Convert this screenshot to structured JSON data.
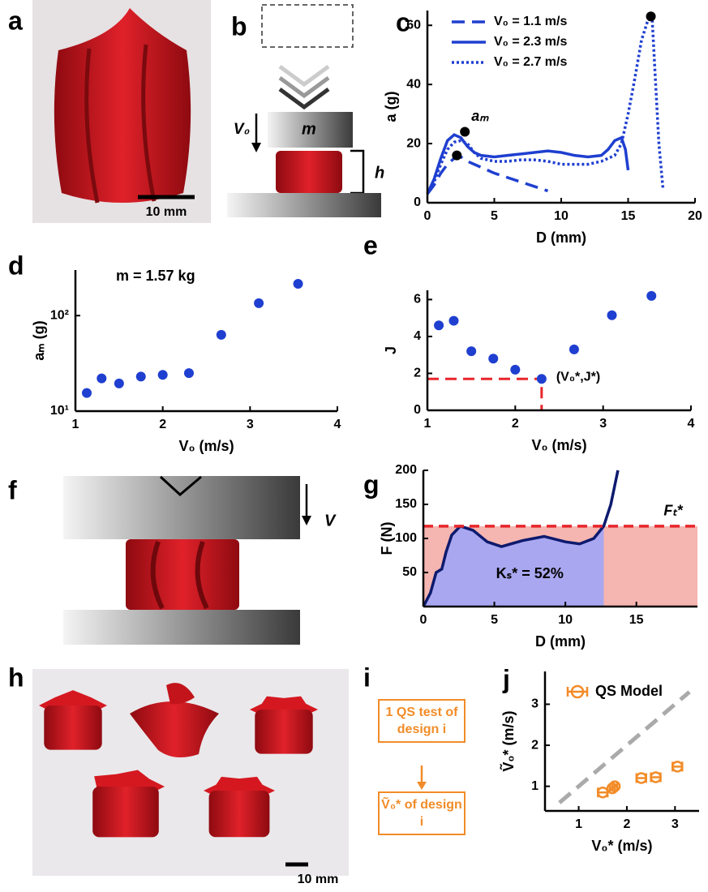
{
  "panel_labels": [
    "a",
    "b",
    "c",
    "d",
    "e",
    "f",
    "g",
    "h",
    "i",
    "j"
  ],
  "panel_a": {
    "scale_bar": "10 mm"
  },
  "panel_b": {
    "mass": "m",
    "velocity": "V₀",
    "height": "h"
  },
  "panel_f": {
    "velocity": "V"
  },
  "panel_h": {
    "scale_bar": "10 mm"
  },
  "panel_i": {
    "step1": "1 QS test of design i",
    "step2": "Ṽ₀* of design i"
  },
  "chart_data": [
    {
      "type": "line",
      "xlabel": "D (mm)",
      "ylabel": "a (g)",
      "xlim": [
        0,
        20
      ],
      "xticks": [
        0,
        5,
        10,
        15,
        20
      ],
      "ylim": [
        0,
        65
      ],
      "yticks": [
        0,
        20,
        40,
        60
      ],
      "legend": "upper left",
      "series": [
        {
          "name": "V₀ = 1.1 m/s",
          "color": "#1f3fd0",
          "dash": "dashed",
          "x": [
            0,
            0.5,
            1,
            1.5,
            2,
            2.5,
            3,
            4,
            5,
            6,
            7,
            8,
            9
          ],
          "values": [
            3,
            6,
            10,
            13,
            15,
            15.5,
            14,
            12,
            10,
            8.5,
            7,
            5.5,
            4
          ]
        },
        {
          "name": "V₀ = 2.3 m/s",
          "color": "#1f3fd0",
          "dash": "solid",
          "x": [
            0,
            0.5,
            1,
            1.5,
            2,
            2.5,
            3,
            3.5,
            4,
            5,
            6,
            7,
            8,
            9,
            10,
            11,
            12,
            13,
            13.5,
            14,
            14.5,
            14.8,
            15
          ],
          "values": [
            3,
            8,
            15,
            21,
            23,
            22,
            19,
            17,
            16,
            15.5,
            16,
            16.5,
            17,
            17.5,
            17,
            16,
            15.5,
            16,
            18,
            21,
            22,
            18,
            11
          ]
        },
        {
          "name": "V₀ = 2.7 m/s",
          "color": "#1f3fd0",
          "dash": "dotted",
          "x": [
            0,
            0.5,
            1,
            1.5,
            2,
            2.5,
            3,
            3.5,
            4,
            5,
            6,
            7,
            8,
            9,
            10,
            11,
            12,
            13,
            14,
            14.5,
            15,
            15.5,
            16,
            16.5,
            16.8,
            17,
            17.3,
            17.6
          ],
          "values": [
            3,
            7,
            13,
            18,
            20.5,
            21,
            20,
            17,
            15,
            14,
            14,
            14.5,
            14.5,
            14,
            13,
            13,
            13,
            14,
            16,
            20,
            30,
            42,
            55,
            62,
            62,
            45,
            20,
            5
          ]
        }
      ],
      "markers": {
        "color": "#000000",
        "x": [
          2.2,
          2.8,
          16.7
        ],
        "values": [
          16,
          24,
          63
        ]
      },
      "annotation": "aₘ"
    },
    {
      "type": "scatter",
      "log_y": true,
      "xlabel": "V₀ (m/s)",
      "ylabel": "aₘ (g)",
      "annotation": "m = 1.57 kg",
      "color": "#1f3fd0",
      "x": [
        1.13,
        1.3,
        1.5,
        1.75,
        2.0,
        2.3,
        2.67,
        3.1,
        3.55
      ],
      "values": [
        15.5,
        22,
        19.5,
        23,
        24,
        25,
        63,
        135,
        215
      ],
      "xlim": [
        1,
        4
      ],
      "xticks": [
        1,
        2,
        3,
        4
      ],
      "ylim": [
        10,
        300
      ],
      "yticks": [
        {
          "value": 10,
          "label": "10¹"
        },
        {
          "value": 100,
          "label": "10²"
        }
      ]
    },
    {
      "type": "scatter",
      "xlabel": "V₀ (m/s)",
      "ylabel": "J",
      "color": "#1f3fd0",
      "x": [
        1.13,
        1.3,
        1.5,
        1.75,
        2.0,
        2.3,
        2.67,
        3.1,
        3.55
      ],
      "values": [
        4.6,
        4.85,
        3.2,
        2.8,
        2.2,
        1.7,
        3.3,
        5.15,
        6.2
      ],
      "xlim": [
        1,
        4
      ],
      "xticks": [
        1,
        2,
        3,
        4
      ],
      "ylim": [
        0,
        6.5
      ],
      "yticks": [
        0,
        2,
        4,
        6
      ],
      "optimum": {
        "label": "(V₀*,J*)",
        "x": 2.3,
        "y": 1.7,
        "color": "#e8262b"
      }
    },
    {
      "type": "line",
      "xlabel": "D (mm)",
      "ylabel": "F (N)",
      "xlim": [
        0,
        19.3
      ],
      "xticks": [
        0,
        5,
        10,
        15
      ],
      "ylim": [
        0,
        200
      ],
      "yticks": [
        50,
        100,
        150,
        200
      ],
      "series": [
        {
          "color": "#0d1a6e",
          "dash": "solid",
          "x": [
            0,
            0.5,
            0.9,
            1.3,
            1.6,
            2,
            2.6,
            3.5,
            4.5,
            5.5,
            7,
            8.5,
            10,
            11,
            12,
            12.7,
            13.2,
            13.7
          ],
          "values": [
            0,
            20,
            50,
            55,
            80,
            105,
            118,
            112,
            95,
            88,
            97,
            103,
            95,
            92,
            100,
            118,
            150,
            200
          ]
        }
      ],
      "threshold": {
        "label": "Fₜ*",
        "value": 118,
        "color": "#e8262b"
      },
      "shaded_area": {
        "label": "Kₛ* = 52%",
        "to_x": 12.7,
        "color": "#a9a7f0"
      },
      "background_color": "#f5b5b0"
    },
    {
      "type": "scatter",
      "xlabel": "V₀* (m/s)",
      "ylabel": "Ṽ₀* (m/s)",
      "series": [
        {
          "name": "QS Model",
          "color": "#f28c28",
          "x": [
            1.5,
            1.7,
            1.75,
            2.3,
            2.6,
            3.05
          ],
          "values": [
            0.85,
            0.95,
            1.0,
            1.2,
            1.22,
            1.48
          ],
          "xerr": [
            0.1,
            0.05,
            0.05,
            0.1,
            0.1,
            0.1
          ]
        }
      ],
      "xlim": [
        0.3,
        3.5
      ],
      "ylim": [
        0.4,
        3.8
      ],
      "xticks": [
        1,
        2,
        3
      ],
      "yticks": [
        1,
        2,
        3
      ],
      "reference_line": {
        "slope": 1,
        "color": "#aaaaaa"
      }
    }
  ]
}
